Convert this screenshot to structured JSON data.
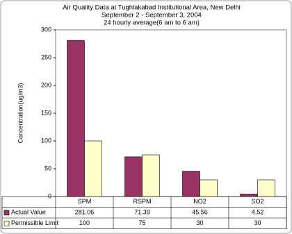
{
  "chart_data": {
    "type": "bar",
    "title": "Air Quality Data at Tughlakabad Institutional Area, New Delhi",
    "subtitle": "September 2  - September 3, 2004",
    "subtitle2": "24 hourly average(6 am to 6 am)",
    "y_label": "Concentration(ug/m3)",
    "categories": [
      "SPM",
      "RSPM",
      "NO2",
      "SO2"
    ],
    "series": [
      {
        "name": "Actual Value",
        "color": "#993366",
        "values": [
          281.06,
          71.39,
          45.56,
          4.52
        ]
      },
      {
        "name": "Permissible Limit",
        "color": "#ffffcc",
        "values": [
          100,
          75,
          30,
          30
        ]
      }
    ],
    "ylim": [
      0,
      300
    ],
    "yticks": [
      0,
      50,
      100,
      150,
      200,
      250,
      300
    ],
    "grid": false
  }
}
